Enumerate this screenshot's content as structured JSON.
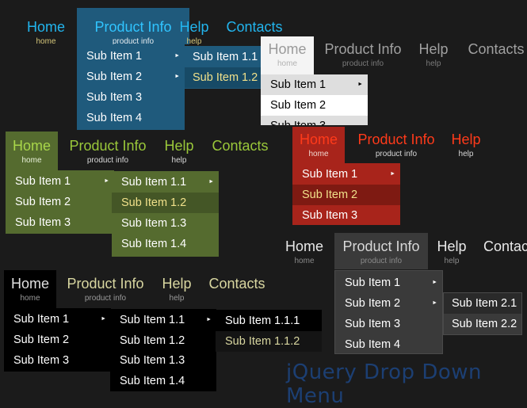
{
  "nav": {
    "home": "Home",
    "home_sub": "home",
    "product": "Product Info",
    "product_sub": "product info",
    "help": "Help",
    "help_sub": "help",
    "contacts": "Contacts",
    "contacts_cut": "Contac"
  },
  "items": {
    "s1": "Sub Item 1",
    "s2": "Sub Item 2",
    "s3": "Sub Item 3",
    "s4": "Sub Item 4",
    "s11": "Sub Item 1.1",
    "s12": "Sub Item 1.2",
    "s13": "Sub Item 1.3",
    "s14": "Sub Item 1.4",
    "s111": "Sub Item 1.1.1",
    "s112": "Sub Item 1.1.2",
    "s21": "Sub Item 2.1",
    "s22": "Sub Item 2.2"
  },
  "watermark": "jQuery Drop Down Menu",
  "arrow": "►",
  "colors": {
    "blue": "#1f5a7c",
    "green": "#556b2f",
    "red": "#a8241b",
    "white": "#f4f4f4",
    "black": "#000000",
    "gray": "#3a3a3a"
  }
}
